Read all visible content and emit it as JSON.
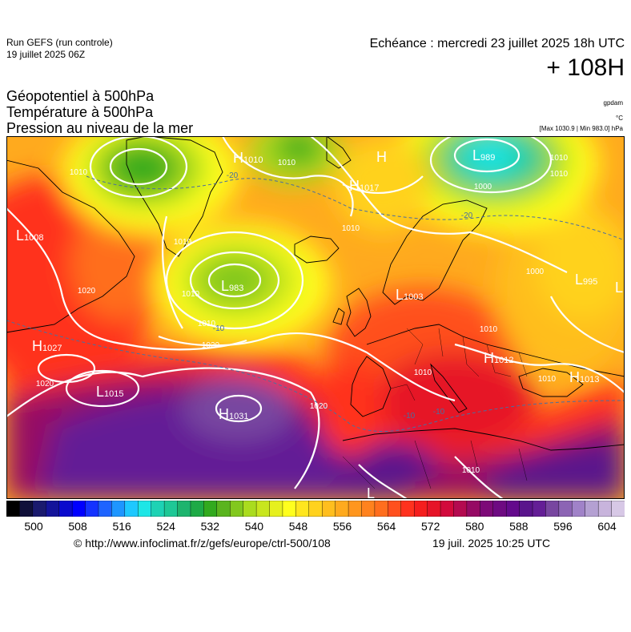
{
  "header": {
    "run_name": "Run GEFS (run controle)",
    "run_date": "19 juillet 2025 06Z",
    "valid_time": "Echéance : mercredi 23 juillet 2025 18h UTC",
    "lead_time": "+ 108H"
  },
  "parameters": [
    "Géopotentiel à 500hPa",
    "Température à 500hPa",
    "Pression au niveau de la mer"
  ],
  "units": {
    "geopotential": "gpdam",
    "temperature": "°C",
    "pressure": "[Max 1030.9 | Min 983.0] hPa"
  },
  "pressure_centers": [
    {
      "type": "H",
      "value": "1010"
    },
    {
      "type": "H",
      "value": ""
    },
    {
      "type": "H",
      "value": "1017"
    },
    {
      "type": "L",
      "value": "989"
    },
    {
      "type": "L",
      "value": "1008"
    },
    {
      "type": "L",
      "value": "983"
    },
    {
      "type": "L",
      "value": "1003"
    },
    {
      "type": "L",
      "value": "995"
    },
    {
      "type": "H",
      "value": "1027"
    },
    {
      "type": "L",
      "value": "1015"
    },
    {
      "type": "H",
      "value": "1031"
    },
    {
      "type": "H",
      "value": "1012"
    },
    {
      "type": "H",
      "value": "1013"
    },
    {
      "type": "L",
      "value": ""
    },
    {
      "type": "L",
      "value": ""
    }
  ],
  "isobar_labels": [
    "1010",
    "1010",
    "1000",
    "1010",
    "1010",
    "1010",
    "1020",
    "1020",
    "1010",
    "1020",
    "1020",
    "1010",
    "1010",
    "1010",
    "1010",
    "1000",
    "1010",
    "1010"
  ],
  "isotherm_labels": [
    "-20",
    "-20",
    "-10",
    "-10",
    "-10"
  ],
  "scale": {
    "labels": [
      "500",
      "508",
      "516",
      "524",
      "532",
      "540",
      "548",
      "556",
      "564",
      "572",
      "580",
      "588",
      "596",
      "604"
    ],
    "colors": [
      "#000000",
      "#10103a",
      "#1a1a6e",
      "#14149a",
      "#0a0acd",
      "#0000ff",
      "#1432ff",
      "#1e64ff",
      "#1e96ff",
      "#1ec8ff",
      "#1ee6e6",
      "#1ed2b4",
      "#1ec896",
      "#1eb46e",
      "#1eaa46",
      "#32aa1e",
      "#5ab41e",
      "#82c81e",
      "#aadc1e",
      "#c8e61e",
      "#e6f01e",
      "#ffff1e",
      "#ffe61e",
      "#ffd21e",
      "#ffbe1e",
      "#ffaa1e",
      "#ff961e",
      "#ff821e",
      "#ff6e1e",
      "#ff501e",
      "#ff321e",
      "#f51e1e",
      "#e61428",
      "#d20a3c",
      "#b40a50",
      "#960a64",
      "#7d0a78",
      "#6e0a82",
      "#640a8c",
      "#5a148c",
      "#641e96",
      "#7846a0",
      "#8c64b4",
      "#a082c8",
      "#b4a0d2",
      "#c8b4dc",
      "#d7c8e6"
    ]
  },
  "footer": {
    "source": "© http://www.infoclimat.fr/z/gefs/europe/ctrl-500/108",
    "issued": "19 juil. 2025 10:25 UTC"
  }
}
